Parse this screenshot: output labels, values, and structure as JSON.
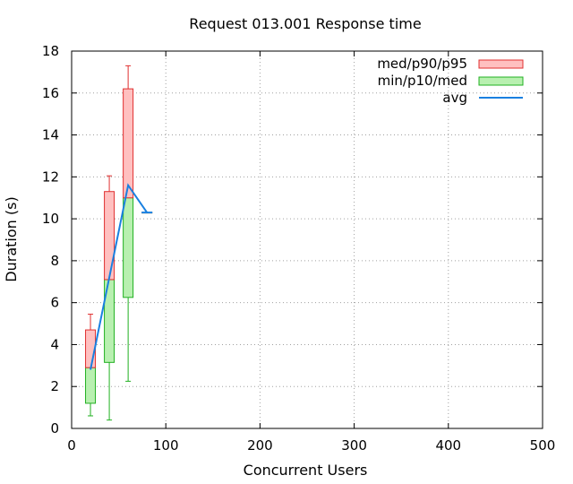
{
  "chart_data": {
    "type": "boxplot",
    "title": "Request 013.001 Response time",
    "xlabel": "Concurrent Users",
    "ylabel": "Duration (s)",
    "xlim": [
      0,
      500
    ],
    "ylim": [
      0,
      18
    ],
    "xticks": [
      0,
      100,
      200,
      300,
      400,
      500
    ],
    "yticks": [
      0,
      2,
      4,
      6,
      8,
      10,
      12,
      14,
      16,
      18
    ],
    "grid": true,
    "legend_position": "top-right",
    "legend": [
      {
        "label": "med/p90/p95",
        "fill": "#ffc0c0",
        "stroke": "#e03030",
        "kind": "box"
      },
      {
        "label": "min/p10/med",
        "fill": "#b8f0b0",
        "stroke": "#20b020",
        "kind": "box"
      },
      {
        "label": "avg",
        "stroke": "#1a80e0",
        "kind": "line"
      }
    ],
    "colors": {
      "upper_fill": "#ffc0c0",
      "upper_stroke": "#e03030",
      "lower_fill": "#b8f0b0",
      "lower_stroke": "#20b020",
      "avg_line": "#1a80e0"
    },
    "points": [
      {
        "x": 20,
        "min": 0.6,
        "p10": 1.2,
        "med": 2.9,
        "p90": 4.7,
        "p95": 5.45,
        "avg": 2.8
      },
      {
        "x": 40,
        "min": 0.4,
        "p10": 3.15,
        "med": 7.1,
        "p90": 11.3,
        "p95": 12.05,
        "avg": 7.2
      },
      {
        "x": 60,
        "min": 2.25,
        "p10": 6.25,
        "med": 11.0,
        "p90": 16.2,
        "p95": 17.3,
        "avg": 11.6
      },
      {
        "x": 80,
        "min": 10.3,
        "p10": 10.3,
        "med": 10.3,
        "p90": 10.3,
        "p95": 10.3,
        "avg": 10.3
      }
    ]
  }
}
